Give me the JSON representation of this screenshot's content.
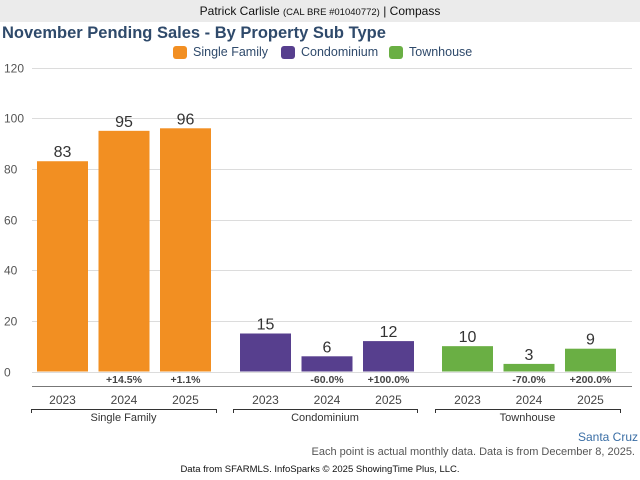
{
  "header": {
    "agent_name": "Patrick Carlisle",
    "license": "(CAL BRE #01040772)",
    "separator": "|",
    "brokerage": "Compass"
  },
  "footer": {
    "region": "Santa Cruz",
    "note": "Each point is actual monthly data. Data is from December 8, 2025.",
    "credit": "Data from SFARMLS. InfoSparks © 2025 ShowingTime Plus, LLC."
  },
  "chart_data": {
    "type": "bar",
    "title": "November Pending Sales - By Property Sub Type",
    "xlabel": "",
    "ylabel": "",
    "ylim": [
      0,
      120
    ],
    "yticks": [
      0,
      20,
      40,
      60,
      80,
      100,
      120
    ],
    "grid": true,
    "legend_position": "top-center",
    "legend": [
      {
        "name": "Single Family",
        "color": "#f28f22"
      },
      {
        "name": "Condominium",
        "color": "#573f8e"
      },
      {
        "name": "Townhouse",
        "color": "#6aaf44"
      }
    ],
    "groups": [
      {
        "name": "Single Family",
        "color": "#f28f22",
        "categories": [
          "2023",
          "2024",
          "2025"
        ],
        "values": [
          83,
          95,
          96
        ],
        "changes": [
          "",
          "+14.5%",
          "+1.1%"
        ]
      },
      {
        "name": "Condominium",
        "color": "#573f8e",
        "categories": [
          "2023",
          "2024",
          "2025"
        ],
        "values": [
          15,
          6,
          12
        ],
        "changes": [
          "",
          "-60.0%",
          "+100.0%"
        ]
      },
      {
        "name": "Townhouse",
        "color": "#6aaf44",
        "categories": [
          "2023",
          "2024",
          "2025"
        ],
        "values": [
          10,
          3,
          9
        ],
        "changes": [
          "",
          "-70.0%",
          "+200.0%"
        ]
      }
    ]
  }
}
